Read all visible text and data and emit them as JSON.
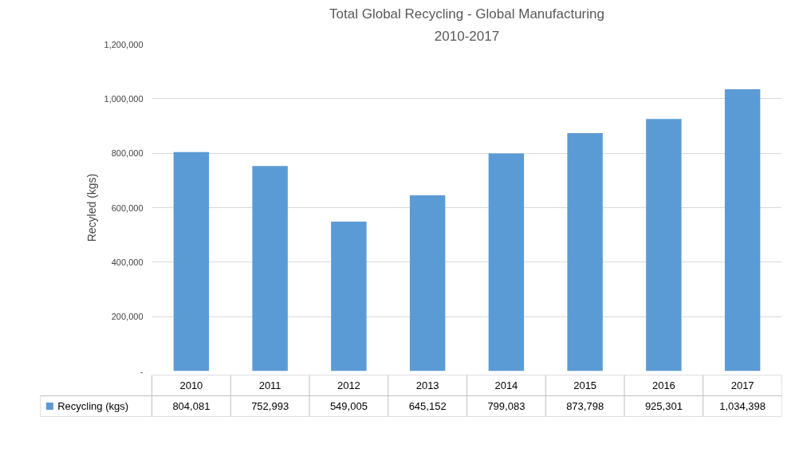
{
  "chart_data": {
    "type": "bar",
    "title": "Total Global Recycling - Global Manufacturing",
    "subtitle": "2010-2017",
    "ylabel": "Recyled (kgs)",
    "categories": [
      "2010",
      "2011",
      "2012",
      "2013",
      "2014",
      "2015",
      "2016",
      "2017"
    ],
    "series": [
      {
        "name": "Recycling (kgs)",
        "color": "#5b9bd5",
        "values": [
          804081,
          752993,
          549005,
          645152,
          799083,
          873798,
          925301,
          1034398
        ]
      }
    ],
    "ylim": [
      0,
      1200000
    ],
    "yticks": [
      {
        "value": 0,
        "label": "-"
      },
      {
        "value": 200000,
        "label": "200,000"
      },
      {
        "value": 400000,
        "label": "400,000"
      },
      {
        "value": 600000,
        "label": "600,000"
      },
      {
        "value": 800000,
        "label": "800,000"
      },
      {
        "value": 1000000,
        "label": "1,000,000"
      },
      {
        "value": 1200000,
        "label": "1,200,000"
      }
    ],
    "value_labels": [
      "804,081",
      "752,993",
      "549,005",
      "645,152",
      "799,083",
      "873,798",
      "925,301",
      "1,034,398"
    ],
    "grid": "y",
    "legend": "bottom"
  }
}
